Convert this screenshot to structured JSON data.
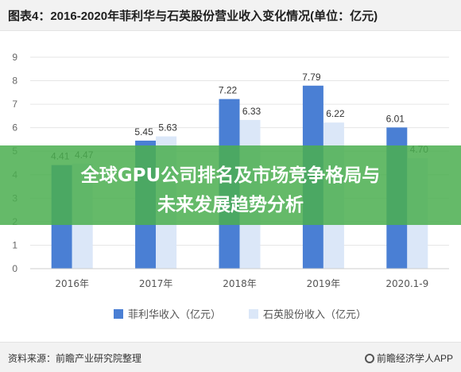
{
  "header": {
    "title": "图表4：2016-2020年菲利华与石英股份营业收入变化情况(单位：亿元)"
  },
  "banner": {
    "line1": "全球GPU公司排名及市场竞争格局与",
    "line2": "未来发展趋势分析"
  },
  "footer": {
    "source": "资料来源：前瞻产业研究院整理",
    "brand": "前瞻经济学人APP"
  },
  "colors": {
    "series1": "#4a7fd4",
    "series2": "#dbe7f8",
    "gridline": "#e6e6e6",
    "banner": "#4caf50"
  },
  "chart_data": {
    "type": "bar",
    "title": "图表4：2016-2020年菲利华与石英股份营业收入变化情况(单位：亿元)",
    "categories": [
      "2016年",
      "2017年",
      "2018年",
      "2019年",
      "2020.1-9"
    ],
    "series": [
      {
        "name": "菲利华收入（亿元）",
        "values": [
          4.41,
          5.45,
          7.22,
          7.79,
          6.01
        ]
      },
      {
        "name": "石英股份收入（亿元）",
        "values": [
          4.47,
          5.63,
          6.33,
          6.22,
          4.7
        ]
      }
    ],
    "ylim": [
      0,
      9
    ],
    "yticks": [
      0,
      1,
      2,
      3,
      4,
      5,
      6,
      7,
      8,
      9
    ],
    "grid": true,
    "legend": "bottom"
  }
}
